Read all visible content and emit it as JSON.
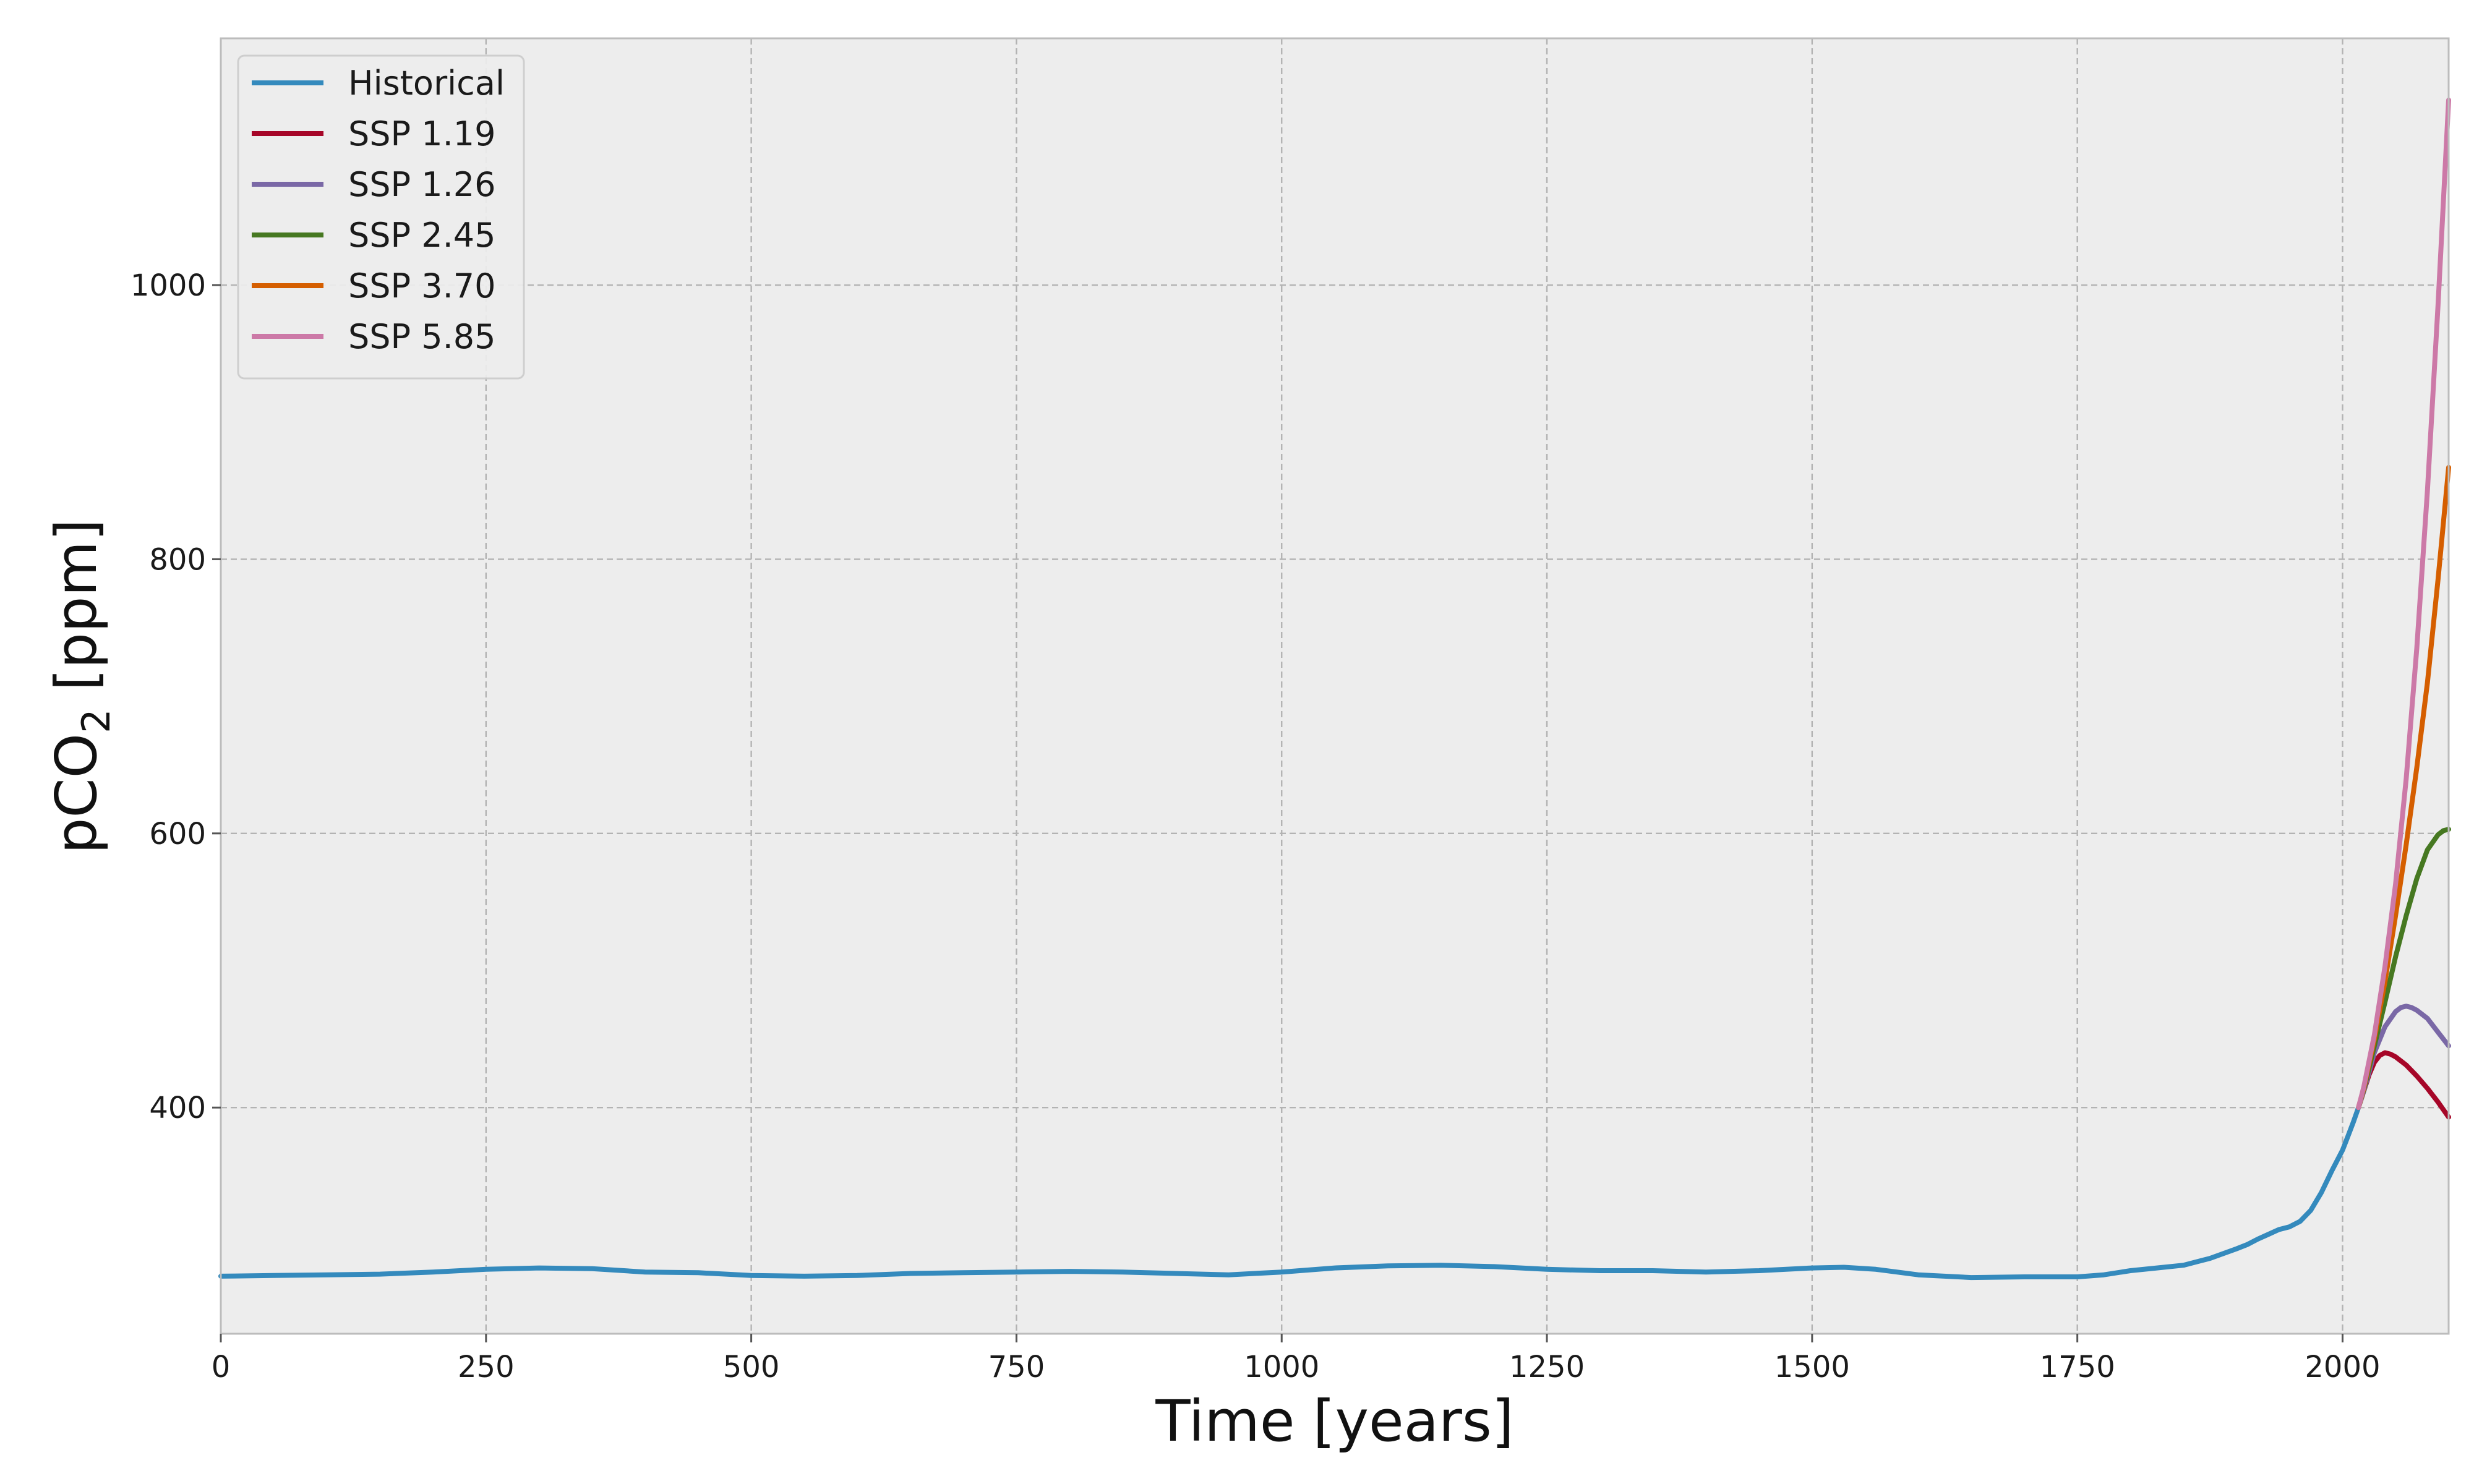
{
  "chart_data": {
    "type": "line",
    "xlabel": "Time [years]",
    "ylabel_main": "pCO",
    "ylabel_subscript": "2",
    "ylabel_unit": " [ppm]",
    "xlim": [
      0,
      2100
    ],
    "ylim": [
      235,
      1180
    ],
    "xticks": [
      0,
      250,
      500,
      750,
      1000,
      1250,
      1500,
      1750,
      2000
    ],
    "yticks": [
      400,
      600,
      800,
      1000
    ],
    "grid": true,
    "legend_position": "top-left",
    "background_color": "#ededed",
    "series": [
      {
        "name": "Historical",
        "color": "#348abd",
        "x": [
          0,
          50,
          100,
          150,
          200,
          250,
          300,
          350,
          400,
          450,
          500,
          550,
          600,
          650,
          700,
          750,
          800,
          850,
          900,
          950,
          1000,
          1050,
          1100,
          1150,
          1200,
          1250,
          1300,
          1350,
          1400,
          1450,
          1500,
          1530,
          1560,
          1600,
          1650,
          1700,
          1750,
          1775,
          1800,
          1825,
          1850,
          1875,
          1900,
          1910,
          1920,
          1930,
          1940,
          1950,
          1960,
          1970,
          1980,
          1990,
          2000,
          2005,
          2010,
          2015
        ],
        "y": [
          277,
          277.5,
          278,
          278.5,
          280,
          282,
          283,
          282.5,
          280,
          279.5,
          277.5,
          277,
          277.5,
          279,
          279.5,
          280,
          280.5,
          280,
          279,
          278,
          280,
          283,
          284.5,
          285,
          284,
          282,
          281,
          281,
          280,
          281,
          283,
          283.5,
          282,
          278,
          276,
          276.5,
          276.5,
          278,
          281,
          283,
          285,
          290,
          297,
          300,
          304,
          307.5,
          311,
          313,
          317,
          325,
          338,
          354,
          369,
          379,
          389,
          400
        ]
      },
      {
        "name": "SSP 1.19",
        "color": "#a60628",
        "x": [
          2015,
          2020,
          2025,
          2030,
          2035,
          2040,
          2045,
          2050,
          2060,
          2070,
          2080,
          2090,
          2100
        ],
        "y": [
          400,
          412,
          424,
          433,
          438,
          440,
          439,
          437,
          431,
          423,
          414,
          404,
          393
        ]
      },
      {
        "name": "SSP 1.26",
        "color": "#7a68a6",
        "x": [
          2015,
          2020,
          2025,
          2030,
          2040,
          2050,
          2055,
          2060,
          2065,
          2070,
          2080,
          2090,
          2100
        ],
        "y": [
          400,
          412,
          426,
          440,
          459,
          470,
          473,
          474,
          473,
          471,
          465,
          455,
          445
        ]
      },
      {
        "name": "SSP 2.45",
        "color": "#467821",
        "x": [
          2015,
          2020,
          2030,
          2040,
          2050,
          2060,
          2070,
          2080,
          2090,
          2095,
          2100
        ],
        "y": [
          400,
          413,
          445,
          477,
          510,
          540,
          567,
          588,
          599,
          602,
          603
        ]
      },
      {
        "name": "SSP 3.70",
        "color": "#d55e00",
        "x": [
          2015,
          2020,
          2030,
          2040,
          2050,
          2060,
          2070,
          2080,
          2090,
          2100
        ],
        "y": [
          400,
          414,
          450,
          492,
          540,
          592,
          648,
          710,
          785,
          867
        ]
      },
      {
        "name": "SSP 5.85",
        "color": "#cc79a7",
        "x": [
          2015,
          2020,
          2030,
          2040,
          2050,
          2060,
          2070,
          2080,
          2090,
          2100
        ],
        "y": [
          400,
          415,
          453,
          503,
          563,
          640,
          735,
          850,
          985,
          1135
        ]
      }
    ]
  }
}
